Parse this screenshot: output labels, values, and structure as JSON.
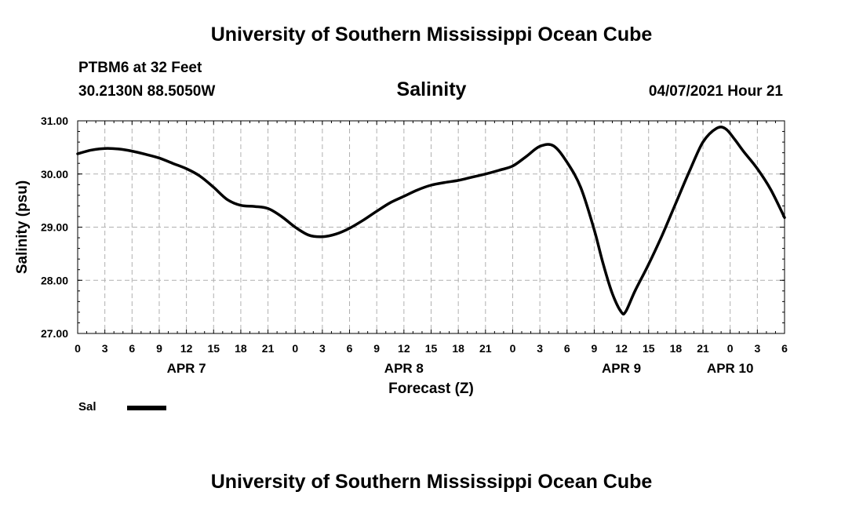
{
  "header": {
    "title": "University of Southern Mississippi Ocean Cube",
    "station": "PTBM6 at 32 Feet",
    "coordinates": "30.2130N  88.5050W",
    "parameter": "Salinity",
    "datetime": "04/07/2021 Hour 21"
  },
  "footer": {
    "title": "University of Southern Mississippi Ocean Cube"
  },
  "legend": {
    "label": "Sal"
  },
  "chart_data": {
    "type": "line",
    "title": "Salinity",
    "xlabel": "Forecast (Z)",
    "ylabel": "Salinity (psu)",
    "ylim": [
      27.0,
      31.0
    ],
    "xlim": [
      0,
      78
    ],
    "yticks": [
      "27.00",
      "28.00",
      "29.00",
      "30.00",
      "31.00"
    ],
    "xtick_hours": [
      0,
      3,
      6,
      9,
      12,
      15,
      18,
      21,
      24,
      27,
      30,
      33,
      36,
      39,
      42,
      45,
      48,
      51,
      54,
      57,
      60,
      63,
      66,
      69,
      72,
      75,
      78
    ],
    "xtick_labels": [
      "0",
      "3",
      "6",
      "9",
      "12",
      "15",
      "18",
      "21",
      "0",
      "3",
      "6",
      "9",
      "12",
      "15",
      "18",
      "21",
      "0",
      "3",
      "6",
      "9",
      "12",
      "15",
      "18",
      "21",
      "0",
      "3",
      "6"
    ],
    "day_labels": [
      {
        "hour": 12,
        "label": "APR 7"
      },
      {
        "hour": 36,
        "label": "APR 8"
      },
      {
        "hour": 60,
        "label": "APR 9"
      },
      {
        "hour": 72,
        "label": "APR 10"
      }
    ],
    "grid": true,
    "series": [
      {
        "name": "Sal",
        "color": "#000000",
        "x": [
          0,
          1.5,
          3,
          4.5,
          6,
          7.5,
          9,
          10.5,
          12,
          13.5,
          15,
          16.5,
          18,
          19.5,
          21,
          22.5,
          24,
          25.5,
          27,
          28.5,
          30,
          31.5,
          33,
          34.5,
          36,
          37.5,
          39,
          40.5,
          42,
          43.5,
          45,
          46.5,
          48,
          49.5,
          51,
          52.5,
          54,
          55.5,
          57,
          58,
          59,
          60,
          60.5,
          61.5,
          63,
          64.5,
          66,
          67.5,
          69,
          70.5,
          71.5,
          72.5,
          73.5,
          75,
          76.5,
          78
        ],
        "values": [
          30.38,
          30.45,
          30.48,
          30.47,
          30.43,
          30.37,
          30.3,
          30.2,
          30.1,
          29.96,
          29.75,
          29.52,
          29.41,
          29.39,
          29.35,
          29.2,
          29.0,
          28.85,
          28.82,
          28.87,
          28.98,
          29.13,
          29.3,
          29.46,
          29.58,
          29.7,
          29.79,
          29.84,
          29.88,
          29.94,
          30.0,
          30.07,
          30.15,
          30.33,
          30.52,
          30.53,
          30.22,
          29.75,
          28.95,
          28.3,
          27.75,
          27.4,
          27.42,
          27.8,
          28.3,
          28.85,
          29.45,
          30.05,
          30.6,
          30.86,
          30.85,
          30.65,
          30.42,
          30.1,
          29.7,
          29.18
        ]
      }
    ]
  }
}
